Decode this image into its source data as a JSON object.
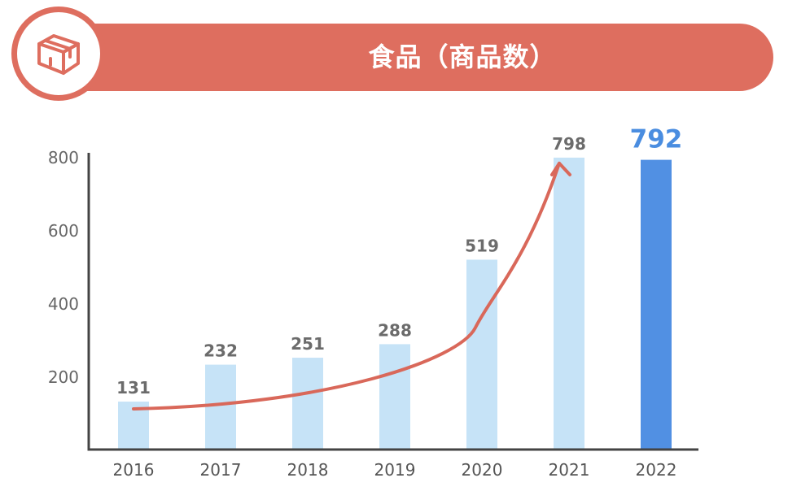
{
  "header": {
    "title": "食品（商品数）",
    "icon": "package-box-icon",
    "color": "#de6e5f"
  },
  "chart_data": {
    "type": "bar",
    "title": "食品（商品数）",
    "categories": [
      "2016",
      "2017",
      "2018",
      "2019",
      "2020",
      "2021",
      "2022"
    ],
    "values": [
      131,
      232,
      251,
      288,
      519,
      798,
      792
    ],
    "data_labels": [
      "131",
      "232",
      "251",
      "288",
      "519",
      "798",
      "792"
    ],
    "y_ticks": [
      "200",
      "400",
      "600",
      "800"
    ],
    "ylim": [
      0,
      800
    ],
    "xlabel": "",
    "ylabel": "",
    "grid": false,
    "highlight_index": 6,
    "colors": {
      "bar": "#c6e3f7",
      "highlight_bar": "#5190e3",
      "highlight_label": "#4a8de0",
      "label": "#6b6b6b",
      "axis": "#444444",
      "trend_arrow": "#d9685a"
    },
    "annotation": "growth-trend-arrow"
  }
}
